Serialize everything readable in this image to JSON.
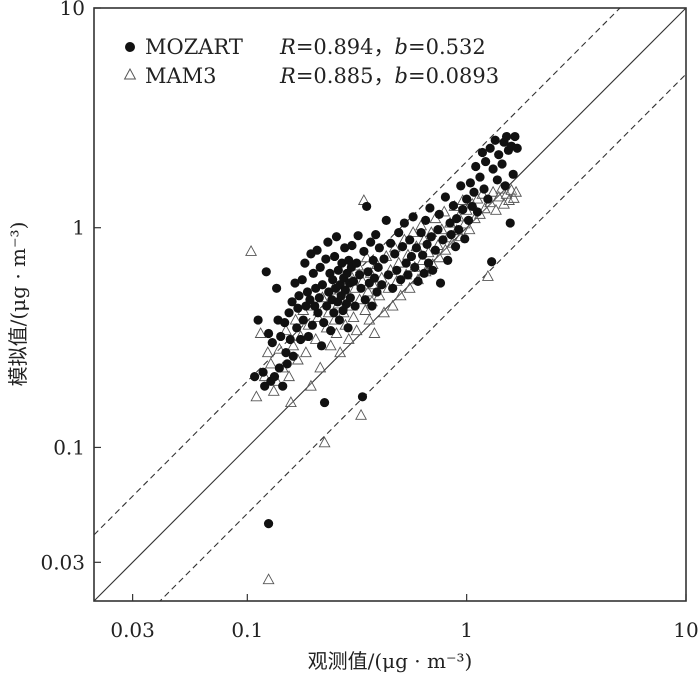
{
  "chart_data": {
    "type": "scatter",
    "xlabel": "观测值/(μg · m⁻³)",
    "ylabel": "模拟值/(μg · m⁻³)",
    "xscale": "log",
    "yscale": "log",
    "xlim": [
      0.02,
      10
    ],
    "ylim": [
      0.02,
      10
    ],
    "x_ticks": [
      0.03,
      0.1,
      1,
      10
    ],
    "x_tick_labels": [
      "0.03",
      "0.1",
      "1",
      "10"
    ],
    "y_ticks": [
      0.03,
      0.1,
      1,
      10
    ],
    "y_tick_labels": [
      "0.03",
      "0.1",
      "1",
      "10"
    ],
    "reference_lines": [
      {
        "name": "1:1",
        "style": "solid",
        "factor": 1
      },
      {
        "name": "2:1",
        "style": "dashed",
        "factor": 2
      },
      {
        "name": "1:2",
        "style": "dashed",
        "factor": 0.5
      }
    ],
    "legend": [
      {
        "marker": "●",
        "name": "MOZART",
        "r_label": "R",
        "r_value": "=0.894，",
        "b_label": "b",
        "b_value": "=0.532"
      },
      {
        "marker": "△",
        "name": "MAM3",
        "r_label": "R",
        "r_value": "=0.885，",
        "b_label": "b",
        "b_value": "=0.0893"
      }
    ],
    "series": [
      {
        "name": "MOZART",
        "marker": "filled-circle",
        "color": "#111111",
        "points": [
          [
            0.108,
            0.21
          ],
          [
            0.112,
            0.38
          ],
          [
            0.118,
            0.22
          ],
          [
            0.12,
            0.19
          ],
          [
            0.122,
            0.63
          ],
          [
            0.125,
            0.33
          ],
          [
            0.128,
            0.2
          ],
          [
            0.13,
            0.3
          ],
          [
            0.133,
            0.21
          ],
          [
            0.136,
            0.53
          ],
          [
            0.138,
            0.38
          ],
          [
            0.14,
            0.23
          ],
          [
            0.142,
            0.32
          ],
          [
            0.145,
            0.19
          ],
          [
            0.148,
            0.37
          ],
          [
            0.15,
            0.27
          ],
          [
            0.152,
            0.24
          ],
          [
            0.155,
            0.41
          ],
          [
            0.157,
            0.31
          ],
          [
            0.16,
            0.46
          ],
          [
            0.162,
            0.26
          ],
          [
            0.165,
            0.56
          ],
          [
            0.168,
            0.35
          ],
          [
            0.17,
            0.43
          ],
          [
            0.172,
            0.49
          ],
          [
            0.175,
            0.31
          ],
          [
            0.178,
            0.58
          ],
          [
            0.18,
            0.38
          ],
          [
            0.183,
            0.69
          ],
          [
            0.185,
            0.44
          ],
          [
            0.188,
            0.51
          ],
          [
            0.19,
            0.32
          ],
          [
            0.193,
            0.47
          ],
          [
            0.195,
            0.76
          ],
          [
            0.198,
            0.36
          ],
          [
            0.2,
            0.62
          ],
          [
            0.203,
            0.44
          ],
          [
            0.205,
            0.53
          ],
          [
            0.208,
            0.79
          ],
          [
            0.21,
            0.41
          ],
          [
            0.213,
            0.48
          ],
          [
            0.215,
            0.66
          ],
          [
            0.218,
            0.29
          ],
          [
            0.22,
            0.55
          ],
          [
            0.223,
            0.37
          ],
          [
            0.225,
            0.16
          ],
          [
            0.228,
            0.72
          ],
          [
            0.23,
            0.44
          ],
          [
            0.233,
            0.86
          ],
          [
            0.235,
            0.51
          ],
          [
            0.238,
            0.62
          ],
          [
            0.24,
            0.34
          ],
          [
            0.243,
            0.47
          ],
          [
            0.245,
            0.58
          ],
          [
            0.248,
            0.41
          ],
          [
            0.25,
            0.74
          ],
          [
            0.253,
            0.53
          ],
          [
            0.255,
            0.91
          ],
          [
            0.258,
            0.46
          ],
          [
            0.26,
            0.64
          ],
          [
            0.263,
            0.38
          ],
          [
            0.265,
            0.55
          ],
          [
            0.268,
            0.49
          ],
          [
            0.27,
            0.69
          ],
          [
            0.273,
            0.42
          ],
          [
            0.275,
            0.59
          ],
          [
            0.278,
            0.81
          ],
          [
            0.28,
            0.52
          ],
          [
            0.283,
            0.45
          ],
          [
            0.285,
            0.62
          ],
          [
            0.288,
            0.35
          ],
          [
            0.29,
            0.71
          ],
          [
            0.293,
            0.56
          ],
          [
            0.295,
            0.48
          ],
          [
            0.298,
            0.66
          ],
          [
            0.3,
            0.83
          ],
          [
            0.305,
            0.57
          ],
          [
            0.31,
            0.44
          ],
          [
            0.315,
            0.69
          ],
          [
            0.32,
            0.92
          ],
          [
            0.325,
            0.61
          ],
          [
            0.33,
            0.53
          ],
          [
            0.335,
            0.17
          ],
          [
            0.34,
            0.78
          ],
          [
            0.345,
            0.47
          ],
          [
            0.35,
            1.25
          ],
          [
            0.355,
            0.63
          ],
          [
            0.36,
            0.56
          ],
          [
            0.365,
            0.86
          ],
          [
            0.37,
            0.44
          ],
          [
            0.375,
            0.71
          ],
          [
            0.38,
            0.59
          ],
          [
            0.385,
            0.93
          ],
          [
            0.39,
            0.51
          ],
          [
            0.395,
            0.66
          ],
          [
            0.4,
            0.81
          ],
          [
            0.41,
            0.55
          ],
          [
            0.42,
            0.72
          ],
          [
            0.43,
            1.08
          ],
          [
            0.44,
            0.61
          ],
          [
            0.45,
            0.85
          ],
          [
            0.46,
            0.53
          ],
          [
            0.47,
            0.76
          ],
          [
            0.48,
            0.64
          ],
          [
            0.49,
            0.95
          ],
          [
            0.5,
            0.58
          ],
          [
            0.51,
            0.82
          ],
          [
            0.52,
            1.05
          ],
          [
            0.53,
            0.69
          ],
          [
            0.54,
            0.61
          ],
          [
            0.55,
            0.88
          ],
          [
            0.56,
            0.74
          ],
          [
            0.57,
            1.12
          ],
          [
            0.58,
            0.66
          ],
          [
            0.59,
            0.81
          ],
          [
            0.6,
            0.57
          ],
          [
            0.62,
            0.95
          ],
          [
            0.63,
            0.75
          ],
          [
            0.64,
            0.62
          ],
          [
            0.65,
            1.08
          ],
          [
            0.66,
            0.84
          ],
          [
            0.67,
            0.69
          ],
          [
            0.68,
            1.23
          ],
          [
            0.69,
            0.91
          ],
          [
            0.7,
            0.64
          ],
          [
            0.72,
            0.79
          ],
          [
            0.74,
            0.98
          ],
          [
            0.75,
            1.15
          ],
          [
            0.76,
            0.56
          ],
          [
            0.78,
            0.88
          ],
          [
            0.8,
            1.38
          ],
          [
            0.82,
            0.71
          ],
          [
            0.84,
            1.05
          ],
          [
            0.85,
            0.93
          ],
          [
            0.87,
            1.26
          ],
          [
            0.89,
            0.82
          ],
          [
            0.9,
            1.1
          ],
          [
            0.92,
            0.98
          ],
          [
            0.94,
            1.55
          ],
          [
            0.96,
            1.21
          ],
          [
            0.98,
            0.89
          ],
          [
            1.0,
            1.35
          ],
          [
            1.02,
            1.08
          ],
          [
            1.04,
            1.6
          ],
          [
            1.06,
            1.25
          ],
          [
            1.08,
            1.45
          ],
          [
            1.1,
            1.9
          ],
          [
            1.12,
            1.18
          ],
          [
            1.15,
            1.7
          ],
          [
            1.18,
            2.2
          ],
          [
            1.2,
            1.5
          ],
          [
            1.22,
            2.0
          ],
          [
            1.25,
            1.35
          ],
          [
            1.28,
            2.3
          ],
          [
            1.3,
            0.7
          ],
          [
            1.32,
            1.85
          ],
          [
            1.35,
            2.5
          ],
          [
            1.38,
            1.65
          ],
          [
            1.4,
            2.15
          ],
          [
            1.45,
            1.95
          ],
          [
            1.48,
            2.45
          ],
          [
            1.5,
            1.55
          ],
          [
            1.52,
            2.6
          ],
          [
            1.55,
            2.25
          ],
          [
            1.58,
            1.05
          ],
          [
            1.6,
            2.35
          ],
          [
            1.63,
            1.75
          ],
          [
            1.66,
            2.6
          ],
          [
            1.7,
            2.3
          ],
          [
            0.125,
            0.045
          ]
        ]
      },
      {
        "name": "MAM3",
        "marker": "open-triangle",
        "color": "#555555",
        "points": [
          [
            0.104,
            0.78
          ],
          [
            0.11,
            0.17
          ],
          [
            0.115,
            0.33
          ],
          [
            0.12,
            0.21
          ],
          [
            0.124,
            0.27
          ],
          [
            0.128,
            0.24
          ],
          [
            0.132,
            0.18
          ],
          [
            0.136,
            0.2
          ],
          [
            0.14,
            0.28
          ],
          [
            0.145,
            0.23
          ],
          [
            0.15,
            0.34
          ],
          [
            0.155,
            0.21
          ],
          [
            0.158,
            0.16
          ],
          [
            0.162,
            0.29
          ],
          [
            0.166,
            0.38
          ],
          [
            0.17,
            0.25
          ],
          [
            0.175,
            0.32
          ],
          [
            0.18,
            0.42
          ],
          [
            0.185,
            0.27
          ],
          [
            0.19,
            0.36
          ],
          [
            0.195,
            0.19
          ],
          [
            0.2,
            0.44
          ],
          [
            0.205,
            0.31
          ],
          [
            0.21,
            0.39
          ],
          [
            0.215,
            0.23
          ],
          [
            0.22,
            0.48
          ],
          [
            0.225,
            0.105
          ],
          [
            0.23,
            0.35
          ],
          [
            0.235,
            0.41
          ],
          [
            0.24,
            0.29
          ],
          [
            0.245,
            0.52
          ],
          [
            0.25,
            0.38
          ],
          [
            0.255,
            0.33
          ],
          [
            0.26,
            0.45
          ],
          [
            0.265,
            0.27
          ],
          [
            0.27,
            0.56
          ],
          [
            0.275,
            0.41
          ],
          [
            0.28,
            0.36
          ],
          [
            0.285,
            0.49
          ],
          [
            0.29,
            0.31
          ],
          [
            0.295,
            0.61
          ],
          [
            0.3,
            0.44
          ],
          [
            0.305,
            0.39
          ],
          [
            0.31,
            0.53
          ],
          [
            0.315,
            0.34
          ],
          [
            0.32,
            0.67
          ],
          [
            0.325,
            0.47
          ],
          [
            0.33,
            0.14
          ],
          [
            0.335,
            0.57
          ],
          [
            0.34,
            1.33
          ],
          [
            0.345,
            0.42
          ],
          [
            0.35,
            0.73
          ],
          [
            0.355,
            0.51
          ],
          [
            0.36,
            0.38
          ],
          [
            0.365,
            0.62
          ],
          [
            0.37,
            0.46
          ],
          [
            0.375,
            0.55
          ],
          [
            0.38,
            0.33
          ],
          [
            0.39,
            0.68
          ],
          [
            0.4,
            0.49
          ],
          [
            0.41,
            0.59
          ],
          [
            0.42,
            0.41
          ],
          [
            0.43,
            0.74
          ],
          [
            0.44,
            0.53
          ],
          [
            0.45,
            0.64
          ],
          [
            0.46,
            0.44
          ],
          [
            0.47,
            0.81
          ],
          [
            0.48,
            0.57
          ],
          [
            0.49,
            0.69
          ],
          [
            0.5,
            0.49
          ],
          [
            0.52,
            0.88
          ],
          [
            0.53,
            0.61
          ],
          [
            0.54,
            0.75
          ],
          [
            0.55,
            0.53
          ],
          [
            0.57,
            0.95
          ],
          [
            0.58,
            0.66
          ],
          [
            0.59,
            0.82
          ],
          [
            0.6,
            0.58
          ],
          [
            0.62,
            1.02
          ],
          [
            0.63,
            0.71
          ],
          [
            0.64,
            0.88
          ],
          [
            0.65,
            0.63
          ],
          [
            0.67,
            0.77
          ],
          [
            0.69,
            0.95
          ],
          [
            0.7,
            0.68
          ],
          [
            0.72,
            1.1
          ],
          [
            0.74,
            0.83
          ],
          [
            0.75,
            0.73
          ],
          [
            0.77,
            0.98
          ],
          [
            0.79,
            1.18
          ],
          [
            0.8,
            0.79
          ],
          [
            0.82,
            0.9
          ],
          [
            0.84,
            1.05
          ],
          [
            0.86,
            0.85
          ],
          [
            0.88,
            1.25
          ],
          [
            0.9,
            0.97
          ],
          [
            0.92,
            1.12
          ],
          [
            0.94,
            0.91
          ],
          [
            0.96,
            1.33
          ],
          [
            0.98,
            1.04
          ],
          [
            1.0,
            1.2
          ],
          [
            1.03,
            0.98
          ],
          [
            1.06,
            1.28
          ],
          [
            1.09,
            1.1
          ],
          [
            1.12,
            1.35
          ],
          [
            1.15,
            1.15
          ],
          [
            1.18,
            1.42
          ],
          [
            1.21,
            1.22
          ],
          [
            1.25,
            0.6
          ],
          [
            1.28,
            1.3
          ],
          [
            1.32,
            1.45
          ],
          [
            1.36,
            1.2
          ],
          [
            1.4,
            1.38
          ],
          [
            1.44,
            1.5
          ],
          [
            1.48,
            1.28
          ],
          [
            1.52,
            1.42
          ],
          [
            1.56,
            1.33
          ],
          [
            1.6,
            1.48
          ],
          [
            1.64,
            1.36
          ],
          [
            1.68,
            1.45
          ],
          [
            0.125,
            0.025
          ]
        ]
      }
    ]
  }
}
